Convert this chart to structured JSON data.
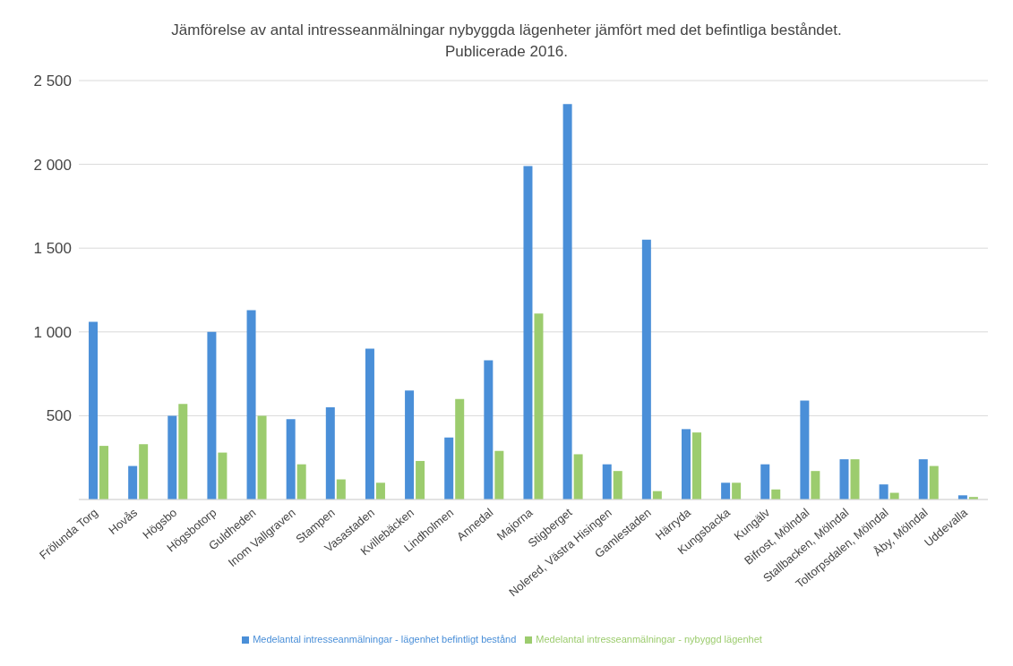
{
  "chart_data": {
    "type": "bar",
    "title": "Jämförelse av antal intresseanmälningar nybyggda lägenheter jämfört med det befintliga beståndet.",
    "subtitle": "Publicerade 2016.",
    "categories": [
      "Frölunda Torg",
      "Hovås",
      "Högsbo",
      "Högsbotorp",
      "Guldheden",
      "Inom Vallgraven",
      "Stampen",
      "Vasastaden",
      "Kvillebäcken",
      "Lindholmen",
      "Annedal",
      "Majorna",
      "Stigberget",
      "Nolered, Västra Hisingen",
      "Gamlestaden",
      "Härryda",
      "Kungsbacka",
      "Kungälv",
      "Bifrost, Mölndal",
      "Stallbacken, Mölndal",
      "Toltorpsdalen, Mölndal",
      "Åby, Mölndal",
      "Uddevalla"
    ],
    "series": [
      {
        "name": "Medelantal intresseanmälningar - lägenhet befintligt bestånd",
        "color": "#4a8fd8",
        "values": [
          1060,
          200,
          500,
          1000,
          1130,
          480,
          550,
          900,
          650,
          370,
          830,
          1990,
          2360,
          210,
          1550,
          420,
          100,
          210,
          590,
          240,
          90,
          240,
          25
        ]
      },
      {
        "name": "Medelantal intresseanmälningar - nybyggd lägenhet",
        "color": "#9ccc6e",
        "values": [
          320,
          330,
          570,
          280,
          500,
          210,
          120,
          100,
          230,
          600,
          290,
          1110,
          270,
          170,
          50,
          400,
          100,
          60,
          170,
          240,
          40,
          200,
          15
        ]
      }
    ],
    "ylim": [
      0,
      2500
    ],
    "yticks": [
      {
        "value": 500,
        "label": "500"
      },
      {
        "value": 1000,
        "label": "1 000"
      },
      {
        "value": 1500,
        "label": "1 500"
      },
      {
        "value": 2000,
        "label": "2 000"
      },
      {
        "value": 2500,
        "label": "2 500"
      }
    ],
    "grid": "y",
    "legend": "bottom"
  }
}
